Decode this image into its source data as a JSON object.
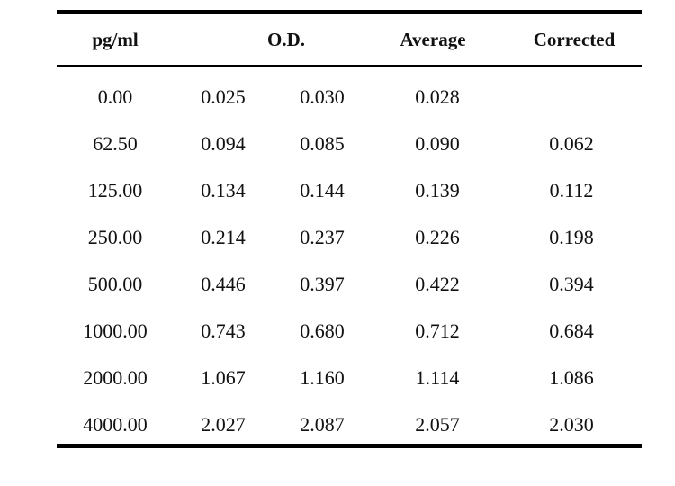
{
  "table": {
    "headers": {
      "concentration": "pg/ml",
      "od": "O.D.",
      "average": "Average",
      "corrected": "Corrected"
    },
    "rows": [
      {
        "concentration": "0.00",
        "od1": "0.025",
        "od2": "0.030",
        "average": "0.028",
        "corrected": ""
      },
      {
        "concentration": "62.50",
        "od1": "0.094",
        "od2": "0.085",
        "average": "0.090",
        "corrected": "0.062"
      },
      {
        "concentration": "125.00",
        "od1": "0.134",
        "od2": "0.144",
        "average": "0.139",
        "corrected": "0.112"
      },
      {
        "concentration": "250.00",
        "od1": "0.214",
        "od2": "0.237",
        "average": "0.226",
        "corrected": "0.198"
      },
      {
        "concentration": "500.00",
        "od1": "0.446",
        "od2": "0.397",
        "average": "0.422",
        "corrected": "0.394"
      },
      {
        "concentration": "1000.00",
        "od1": "0.743",
        "od2": "0.680",
        "average": "0.712",
        "corrected": "0.684"
      },
      {
        "concentration": "2000.00",
        "od1": "1.067",
        "od2": "1.160",
        "average": "1.114",
        "corrected": "1.086"
      },
      {
        "concentration": "4000.00",
        "od1": "2.027",
        "od2": "2.087",
        "average": "2.057",
        "corrected": "2.030"
      }
    ]
  }
}
